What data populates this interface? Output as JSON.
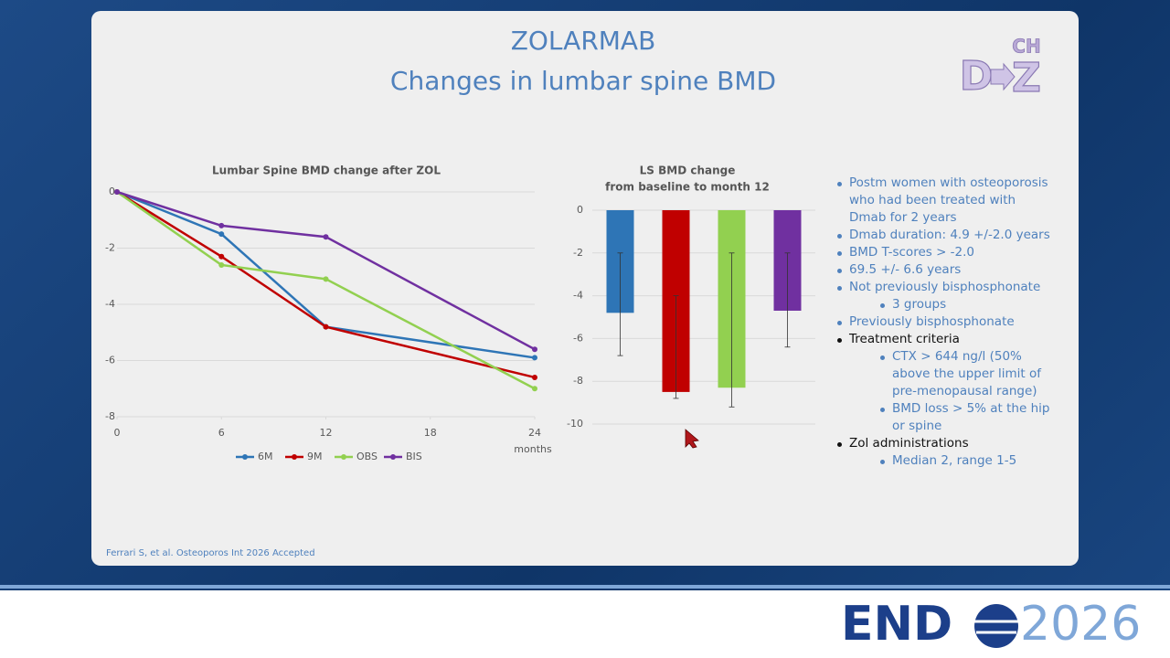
{
  "slide": {
    "title": "ZOLARMAB",
    "subtitle": "Changes in lumbar spine BMD",
    "logo": {
      "top": "CH",
      "left": "D",
      "right": "Z"
    },
    "citation": "Ferrari S, et al. Osteoporos Int 2026 Accepted",
    "bullets": [
      {
        "text": "Postm women with osteoporosis who had been treated with Dmab for 2 years",
        "level": 1,
        "color": "#4f81bd"
      },
      {
        "text": "Dmab duration: 4.9 +/-2.0 years",
        "level": 1,
        "color": "#4f81bd"
      },
      {
        "text": "BMD T-scores > -2.0",
        "level": 1,
        "color": "#4f81bd"
      },
      {
        "text": "69.5 +/- 6.6 years",
        "level": 1,
        "color": "#4f81bd"
      },
      {
        "text": "Not previously bisphosphonate",
        "level": 1,
        "color": "#4f81bd"
      },
      {
        "text": "3 groups",
        "level": 2,
        "color": "#4f81bd"
      },
      {
        "text": "Previously bisphosphonate",
        "level": 1,
        "color": "#4f81bd"
      },
      {
        "text": "Treatment criteria",
        "level": 1,
        "color": "#111111"
      },
      {
        "text": "CTX > 644 ng/l (50% above the upper limit of pre-menopausal range)",
        "level": 2,
        "color": "#4f81bd"
      },
      {
        "text": "BMD loss > 5% at the hip or spine",
        "level": 2,
        "color": "#4f81bd"
      },
      {
        "text": "Zol administrations",
        "level": 1,
        "color": "#111111"
      },
      {
        "text": "Median 2, range 1-5",
        "level": 2,
        "color": "#4f81bd"
      }
    ]
  },
  "chart_data": [
    {
      "type": "line",
      "title": "Lumbar Spine BMD change after ZOL",
      "x_label": "months",
      "x": [
        0,
        6,
        12,
        24
      ],
      "xlim": [
        0,
        24
      ],
      "xticks": [
        0,
        6,
        12,
        18,
        24
      ],
      "ylim": [
        -8,
        0
      ],
      "yticks": [
        -8,
        -6,
        -4,
        -2,
        0
      ],
      "grid": true,
      "legend": "bottom",
      "series": [
        {
          "name": "6M",
          "color": "#2e75b6",
          "values": [
            0,
            -1.5,
            -4.8,
            -5.9
          ]
        },
        {
          "name": "9M",
          "color": "#c00000",
          "values": [
            0,
            -2.3,
            -4.8,
            -6.6
          ]
        },
        {
          "name": "OBS",
          "color": "#92d050",
          "values": [
            0,
            -2.6,
            -3.1,
            -7.0
          ]
        },
        {
          "name": "BIS",
          "color": "#7030a0",
          "values": [
            0,
            -1.2,
            -1.6,
            -5.6
          ]
        }
      ]
    },
    {
      "type": "bar",
      "title": [
        "LS BMD change",
        "from baseline to month 12"
      ],
      "categories": [
        null,
        null,
        null,
        null
      ],
      "values": [
        -4.8,
        -8.5,
        -8.3,
        -4.7
      ],
      "error_low": [
        -6.8,
        -8.8,
        -9.2,
        -6.4
      ],
      "error_high": [
        -2.0,
        -4.0,
        -2.0,
        -2.0
      ],
      "colors": [
        "#2e75b6",
        "#c00000",
        "#92d050",
        "#7030a0"
      ],
      "ylim": [
        -10,
        0
      ],
      "yticks": [
        -10,
        -8,
        -6,
        -4,
        -2,
        0
      ],
      "grid": true
    }
  ],
  "footer": {
    "brand": "END",
    "year": "2026"
  }
}
